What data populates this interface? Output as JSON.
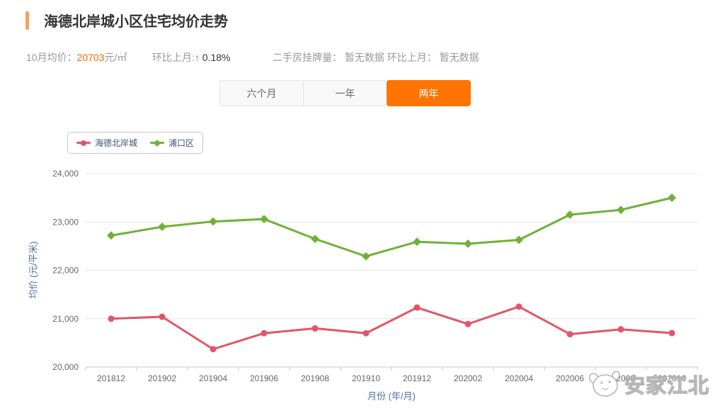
{
  "header": {
    "title": "海德北岸城小区住宅均价走势"
  },
  "stats": {
    "avg_label": "10月均价：",
    "avg_value": "20703",
    "avg_unit": "元/㎡",
    "mom_label": "环比上月:",
    "mom_arrow": "↑",
    "mom_value": "0.18%",
    "listing_label": "二手房挂牌量：",
    "listing_value": "暂无数据",
    "listing_mom_label": "环比上月：",
    "listing_mom_value": "暂无数据"
  },
  "tabs": [
    {
      "label": "六个月",
      "active": false
    },
    {
      "label": "一年",
      "active": false
    },
    {
      "label": "两年",
      "active": true
    }
  ],
  "colors": {
    "accent": "#ff7300",
    "accent_soft": "#f5a05c",
    "value_orange": "#ff6600",
    "arrow_red": "#e8413c",
    "axis_title_blue": "#4e6ea8",
    "gridline": "#e4e4e4",
    "axis_line": "#c9c9c9"
  },
  "watermark": {
    "text": "安家江北",
    "icon": "mascot-face-icon"
  },
  "chart_data": {
    "type": "line",
    "categories": [
      "201812",
      "201902",
      "201904",
      "201906",
      "201908",
      "201910",
      "201912",
      "202002",
      "202004",
      "202006",
      "202008",
      "202010"
    ],
    "series": [
      {
        "name": "海德北岸城",
        "color": "#e25568",
        "marker": "circle",
        "values": [
          21000,
          21040,
          20370,
          20700,
          20800,
          20700,
          21230,
          20890,
          21250,
          20680,
          20780,
          20703
        ]
      },
      {
        "name": "浦口区",
        "color": "#6fb136",
        "marker": "diamond",
        "values": [
          22720,
          22900,
          23010,
          23060,
          22650,
          22290,
          22590,
          22550,
          22630,
          23150,
          23250,
          23500
        ]
      }
    ],
    "title": "",
    "xlabel": "月份 (年/月)",
    "ylabel": "均价 (元/平米)",
    "ylim": [
      20000,
      24000
    ],
    "ytick_step": 1000,
    "grid": true,
    "legend_position": "top-left"
  }
}
